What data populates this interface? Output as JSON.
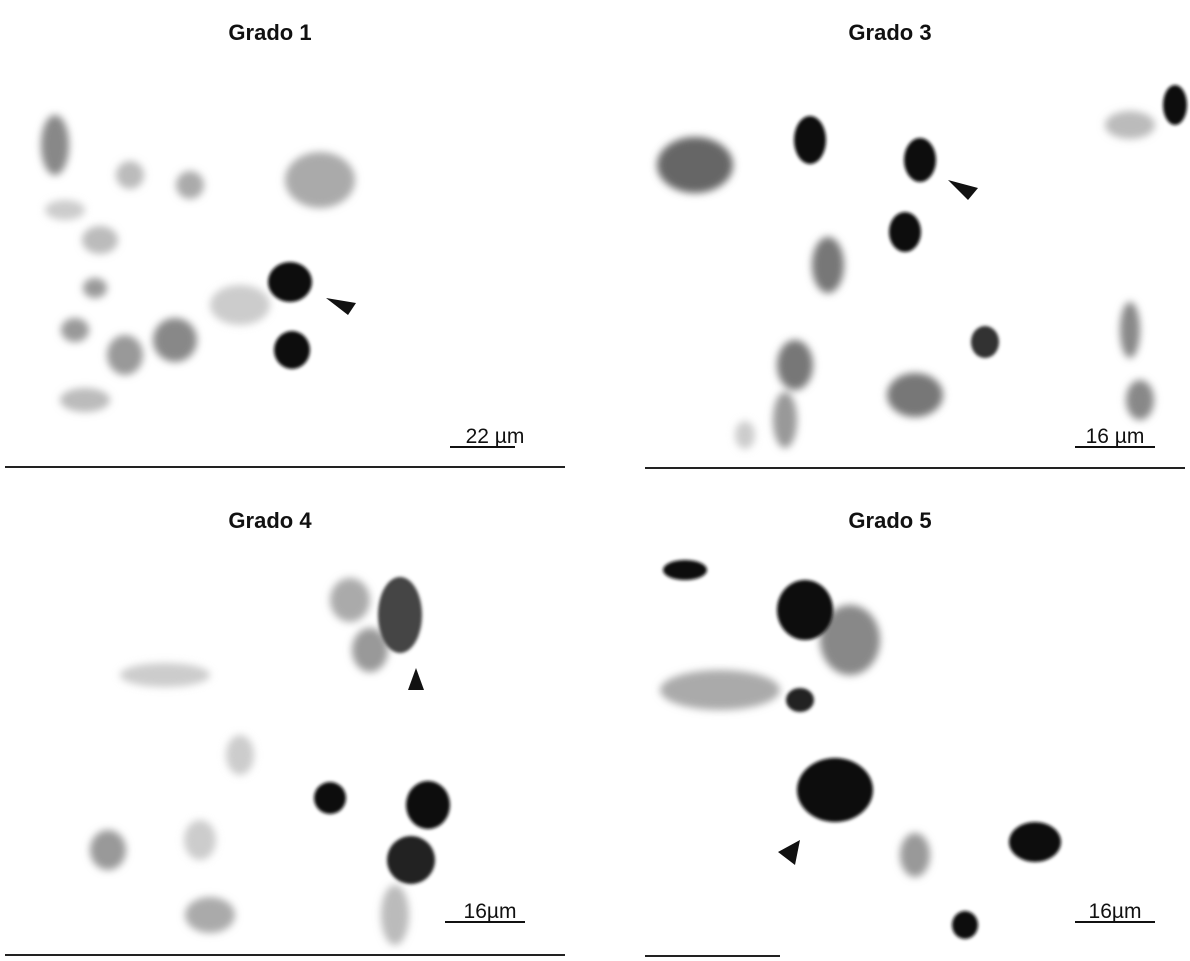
{
  "panels": [
    {
      "title": "Grado 1",
      "scale_label": "22 µm"
    },
    {
      "title": "Grado 3",
      "scale_label": "16 µm"
    },
    {
      "title": "Grado 4",
      "scale_label": "16µm"
    },
    {
      "title": "Grado 5",
      "scale_label": "16µm"
    }
  ]
}
